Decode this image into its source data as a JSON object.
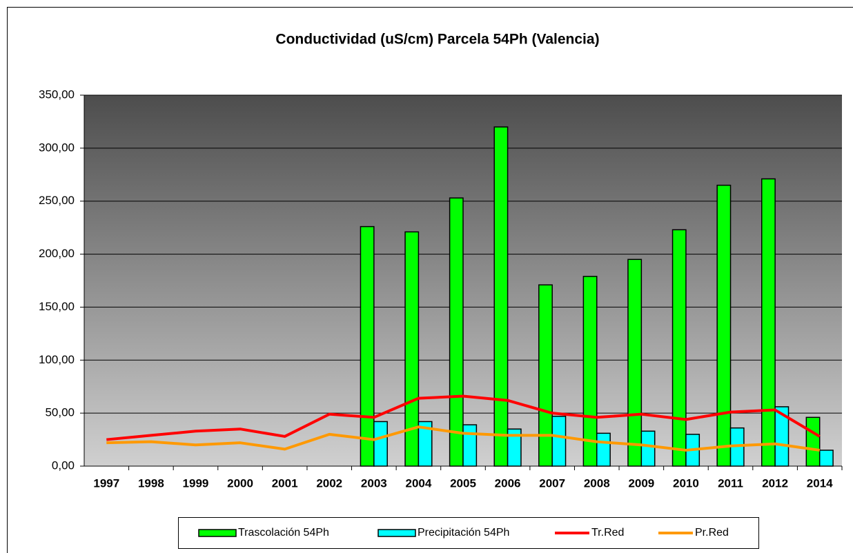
{
  "chart_data": {
    "type": "combo",
    "title": "Conductividad (uS/cm) Parcela 54Ph (Valencia)",
    "categories": [
      "1997",
      "1998",
      "1999",
      "2000",
      "2001",
      "2002",
      "2003",
      "2004",
      "2005",
      "2006",
      "2007",
      "2008",
      "2009",
      "2010",
      "2011",
      "2012",
      "2014"
    ],
    "series": [
      {
        "name": "Trascolación  54Ph",
        "type": "bar",
        "color": "#00ff00",
        "values": [
          null,
          null,
          null,
          null,
          null,
          null,
          226,
          221,
          253,
          320,
          171,
          179,
          195,
          223,
          265,
          271,
          46
        ]
      },
      {
        "name": "Precipitación 54Ph",
        "type": "bar",
        "color": "#00ffff",
        "values": [
          null,
          null,
          null,
          null,
          null,
          null,
          42,
          42,
          39,
          35,
          47,
          31,
          33,
          30,
          36,
          56,
          15
        ]
      },
      {
        "name": "Tr.Red",
        "type": "line",
        "color": "#ff0000",
        "values": [
          25,
          29,
          33,
          35,
          28,
          49,
          46,
          64,
          66,
          62,
          50,
          46,
          49,
          44,
          51,
          53,
          28
        ]
      },
      {
        "name": "Pr.Red",
        "type": "line",
        "color": "#ff9900",
        "values": [
          22,
          23,
          20,
          22,
          16,
          30,
          25,
          37,
          31,
          29,
          29,
          23,
          20,
          15,
          19,
          21,
          15
        ]
      }
    ],
    "ylim": [
      0,
      350
    ],
    "yticks": [
      {
        "value": 0,
        "label": "0,00"
      },
      {
        "value": 50,
        "label": "50,00"
      },
      {
        "value": 100,
        "label": "100,00"
      },
      {
        "value": 150,
        "label": "150,00"
      },
      {
        "value": 200,
        "label": "200,00"
      },
      {
        "value": 250,
        "label": "250,00"
      },
      {
        "value": 300,
        "label": "300,00"
      },
      {
        "value": 350,
        "label": "350,00"
      }
    ],
    "grid": true,
    "legend": "bottom"
  }
}
